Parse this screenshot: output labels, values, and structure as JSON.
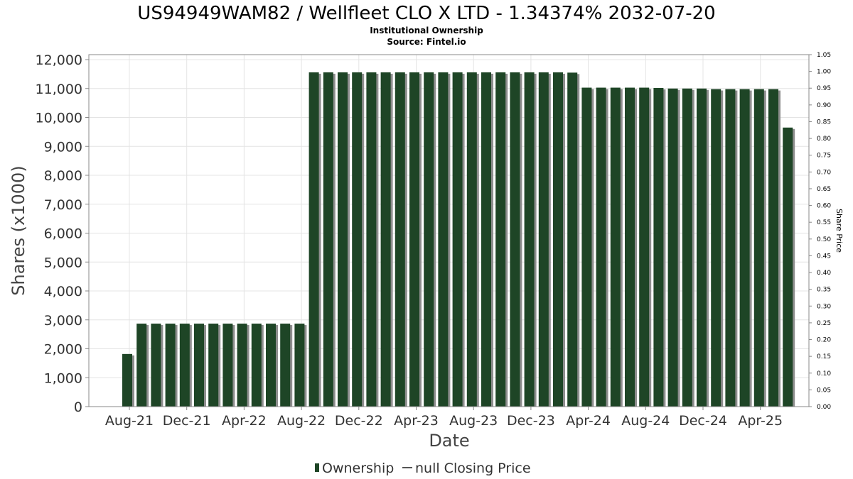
{
  "colors": {
    "bar": "#1e4526",
    "bar_shadow": "#8e8e8e",
    "grid": "#e4e4e4",
    "axis": "#888888"
  },
  "chart_data": {
    "type": "bar",
    "title": "US94949WAM82 / Wellfleet CLO X LTD - 1.34374% 2032-07-20",
    "subtitle_lines": [
      "Institutional Ownership",
      "Source: Fintel.io"
    ],
    "xlabel": "Date",
    "ylabel": "Shares (x1000)",
    "y2label": "Share Price",
    "ylim": [
      0,
      12000
    ],
    "y2lim": [
      0,
      1.05
    ],
    "yticks": [
      {
        "value": 0,
        "label": "0"
      },
      {
        "value": 1000,
        "label": "1,000"
      },
      {
        "value": 2000,
        "label": "2,000"
      },
      {
        "value": 3000,
        "label": "3,000"
      },
      {
        "value": 4000,
        "label": "4,000"
      },
      {
        "value": 5000,
        "label": "5,000"
      },
      {
        "value": 6000,
        "label": "6,000"
      },
      {
        "value": 7000,
        "label": "7,000"
      },
      {
        "value": 8000,
        "label": "8,000"
      },
      {
        "value": 9000,
        "label": "9,000"
      },
      {
        "value": 10000,
        "label": "10,000"
      },
      {
        "value": 11000,
        "label": "11,000"
      },
      {
        "value": 12000,
        "label": "12,000"
      }
    ],
    "y2ticks": [
      {
        "value": 0.0,
        "label": "0.00"
      },
      {
        "value": 0.05,
        "label": "0.05"
      },
      {
        "value": 0.1,
        "label": "0.10"
      },
      {
        "value": 0.15,
        "label": "0.15"
      },
      {
        "value": 0.2,
        "label": "0.20"
      },
      {
        "value": 0.25,
        "label": "0.25"
      },
      {
        "value": 0.3,
        "label": "0.30"
      },
      {
        "value": 0.35,
        "label": "0.35"
      },
      {
        "value": 0.4,
        "label": "0.40"
      },
      {
        "value": 0.45,
        "label": "0.45"
      },
      {
        "value": 0.5,
        "label": "0.50"
      },
      {
        "value": 0.55,
        "label": "0.55"
      },
      {
        "value": 0.6,
        "label": "0.60"
      },
      {
        "value": 0.65,
        "label": "0.65"
      },
      {
        "value": 0.7,
        "label": "0.70"
      },
      {
        "value": 0.75,
        "label": "0.75"
      },
      {
        "value": 0.8,
        "label": "0.80"
      },
      {
        "value": 0.85,
        "label": "0.85"
      },
      {
        "value": 0.9,
        "label": "0.90"
      },
      {
        "value": 0.95,
        "label": "0.95"
      },
      {
        "value": 1.0,
        "label": "1.00"
      },
      {
        "value": 1.05,
        "label": "1.05"
      }
    ],
    "xticks": [
      "Aug-21",
      "Dec-21",
      "Apr-22",
      "Aug-22",
      "Dec-22",
      "Apr-23",
      "Aug-23",
      "Dec-23",
      "Apr-24",
      "Aug-24",
      "Dec-24",
      "Apr-25"
    ],
    "series": [
      {
        "name": "Ownership",
        "values": [
          1820,
          2870,
          2870,
          2870,
          2870,
          2870,
          2870,
          2870,
          2870,
          2870,
          2870,
          2870,
          2870,
          11560,
          11560,
          11560,
          11560,
          11560,
          11560,
          11560,
          11560,
          11560,
          11560,
          11560,
          11560,
          11560,
          11560,
          11560,
          11560,
          11560,
          11560,
          11550,
          11030,
          11030,
          11030,
          11030,
          11030,
          11020,
          11000,
          11000,
          11000,
          10980,
          10980,
          10980,
          10980,
          10980,
          9650
        ]
      }
    ],
    "legend": {
      "placement": "bottom-center",
      "items": [
        {
          "label": "Ownership",
          "kind": "bar"
        },
        {
          "label": "null Closing Price",
          "kind": "line"
        }
      ]
    },
    "grid": true
  }
}
